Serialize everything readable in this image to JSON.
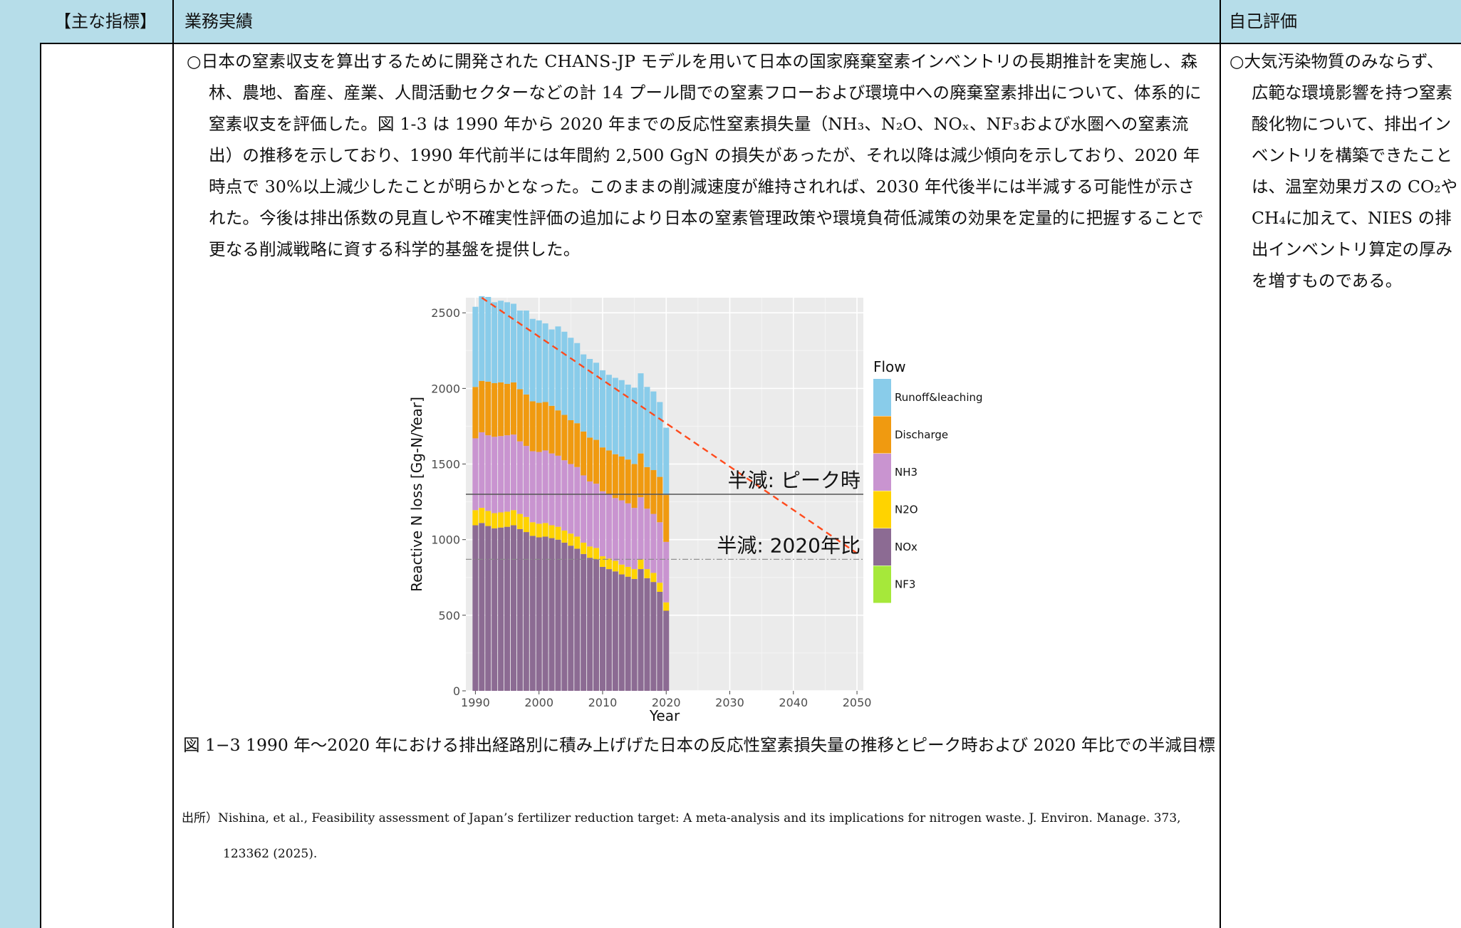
{
  "table": {
    "headers": {
      "indicator": "【主な指標】",
      "results": "業務実績",
      "evaluation": "自己評価"
    }
  },
  "results": {
    "paragraph": "○日本の窒素収支を算出するために開発された CHANS-JP モデルを用いて日本の国家廃棄窒素インベントリの長期推計を実施し、森林、農地、畜産、産業、人間活動セクターなどの計 14 プール間での窒素フローおよび環境中への廃棄窒素排出について、体系的に窒素収支を評価した。図 1-3 は 1990 年から 2020 年までの反応性窒素損失量（NH₃、N₂O、NOₓ、NF₃および水圏への窒素流出）の推移を示しており、1990 年代前半には年間約 2,500 GgN の損失があったが、それ以降は減少傾向を示しており、2020 年時点で 30%以上減少したことが明らかとなった。このままの削減速度が維持されれば、2030 年代後半には半減する可能性が示された。今後は排出係数の見直しや不確実性評価の追加により日本の窒素管理政策や環境負荷低減策の効果を定量的に把握することで更なる削減戦略に資する科学的基盤を提供した。",
    "caption": "図 1−3 1990 年〜2020 年における排出経路別に積み上げげた日本の反応性窒素損失量の推移とピーク時および 2020 年比での半減目標",
    "source": "出所）Nishina, et al., Feasibility assessment of Japan’s fertilizer reduction target: A meta-analysis and its implications for nitrogen waste. J. Environ. Manage. 373, 123362 (2025)."
  },
  "evaluation": {
    "paragraph": "○大気汚染物質のみならず、広範な環境影響を持つ窒素酸化物について、排出インベントリを構築できたことは、温室効果ガスの CO₂や CH₄に加えて、NIES の排出インベントリ算定の厚みを増すものである。"
  },
  "chart_data": {
    "type": "bar",
    "stacked": true,
    "xlabel": "Year",
    "ylabel": "Reactive N loss [Gg-N/Year]",
    "xlim": [
      1988.5,
      2051
    ],
    "ylim": [
      0,
      2600
    ],
    "x_ticks": [
      1990,
      2000,
      2010,
      2020,
      2030,
      2040,
      2050
    ],
    "y_ticks": [
      0,
      500,
      1000,
      1500,
      2000,
      2500
    ],
    "grid": true,
    "legend_title": "Flow",
    "legend_position": "right",
    "x": [
      1990,
      1991,
      1992,
      1993,
      1994,
      1995,
      1996,
      1997,
      1998,
      1999,
      2000,
      2001,
      2002,
      2003,
      2004,
      2005,
      2006,
      2007,
      2008,
      2009,
      2010,
      2011,
      2012,
      2013,
      2014,
      2015,
      2016,
      2017,
      2018,
      2019,
      2020
    ],
    "series": [
      {
        "name": "NF3",
        "color": "#a6e83a",
        "values": [
          0,
          0,
          0,
          0,
          0,
          0,
          0,
          0,
          0,
          0,
          0,
          0,
          0,
          0,
          0,
          0,
          0,
          0,
          0,
          0,
          0,
          0,
          0,
          0,
          0,
          0,
          0,
          0,
          0,
          0,
          0
        ]
      },
      {
        "name": "NOx",
        "color": "#8c6b93",
        "values": [
          1095,
          1110,
          1090,
          1075,
          1080,
          1085,
          1095,
          1070,
          1050,
          1025,
          1015,
          1020,
          1010,
          1000,
          980,
          960,
          940,
          905,
          880,
          870,
          820,
          805,
          790,
          770,
          755,
          740,
          805,
          745,
          720,
          655,
          530
        ]
      },
      {
        "name": "N2O",
        "color": "#ffd300",
        "values": [
          100,
          100,
          100,
          100,
          100,
          100,
          100,
          100,
          100,
          90,
          90,
          90,
          85,
          85,
          80,
          80,
          80,
          75,
          75,
          75,
          70,
          70,
          70,
          65,
          65,
          65,
          65,
          60,
          60,
          60,
          55
        ]
      },
      {
        "name": "NH3",
        "color": "#c994d0",
        "values": [
          475,
          500,
          500,
          505,
          505,
          505,
          500,
          480,
          470,
          470,
          475,
          480,
          475,
          470,
          465,
          460,
          460,
          445,
          430,
          425,
          430,
          425,
          415,
          425,
          420,
          405,
          410,
          400,
          390,
          400,
          400
        ]
      },
      {
        "name": "Discharge",
        "color": "#f09a10",
        "values": [
          340,
          340,
          355,
          355,
          355,
          340,
          345,
          345,
          340,
          330,
          325,
          320,
          315,
          300,
          300,
          290,
          290,
          290,
          290,
          290,
          290,
          290,
          290,
          290,
          290,
          290,
          290,
          275,
          290,
          300,
          310
        ]
      },
      {
        "name": "Runoff&leaching",
        "color": "#89ccea",
        "values": [
          530,
          560,
          560,
          535,
          540,
          540,
          520,
          520,
          555,
          545,
          545,
          520,
          505,
          555,
          550,
          545,
          530,
          510,
          520,
          510,
          510,
          500,
          505,
          505,
          495,
          505,
          530,
          530,
          520,
          495,
          445
        ]
      }
    ],
    "trend_line": {
      "from": [
        1991,
        2600
      ],
      "to": [
        2050,
        910
      ],
      "color": "#ff4a1c",
      "style": "dashed"
    },
    "reference_lines": [
      {
        "label": "半減: ピーク時",
        "y": 1300,
        "style": "solid"
      },
      {
        "label": "半減: 2020年比",
        "y": 870,
        "style": "dashdot"
      }
    ]
  }
}
